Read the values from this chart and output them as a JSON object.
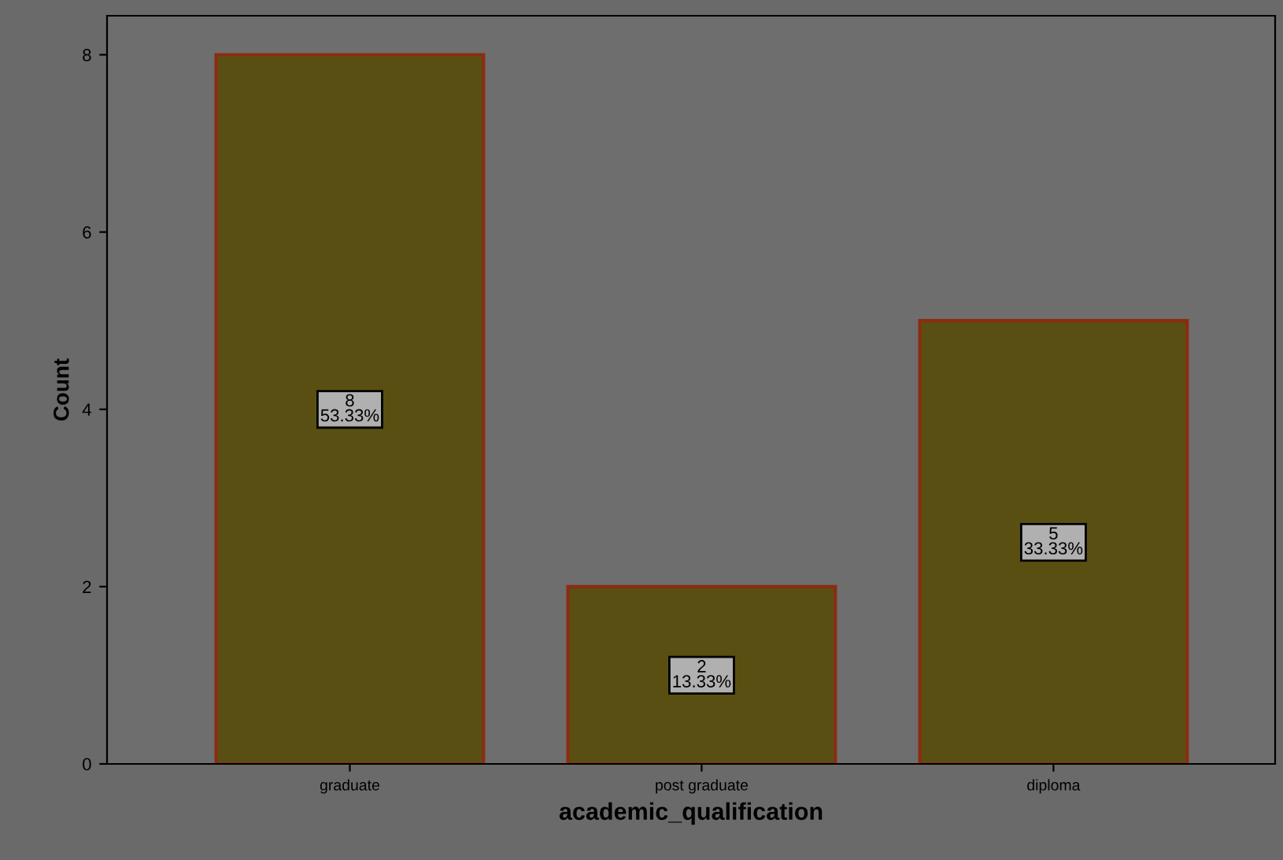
{
  "chart_data": {
    "type": "bar",
    "xlabel": "academic_qualification",
    "ylabel": "Count",
    "categories": [
      "graduate",
      "post graduate",
      "diploma"
    ],
    "values": [
      8,
      2,
      5
    ],
    "value_labels": [
      "8\n53.33%",
      "2\n13.33%",
      "5\n33.33%"
    ],
    "color": "#5a4f12",
    "ylim": [
      0,
      8.44
    ],
    "yticks": [
      0,
      2,
      4,
      6,
      8
    ],
    "grid": false,
    "legend": false
  }
}
